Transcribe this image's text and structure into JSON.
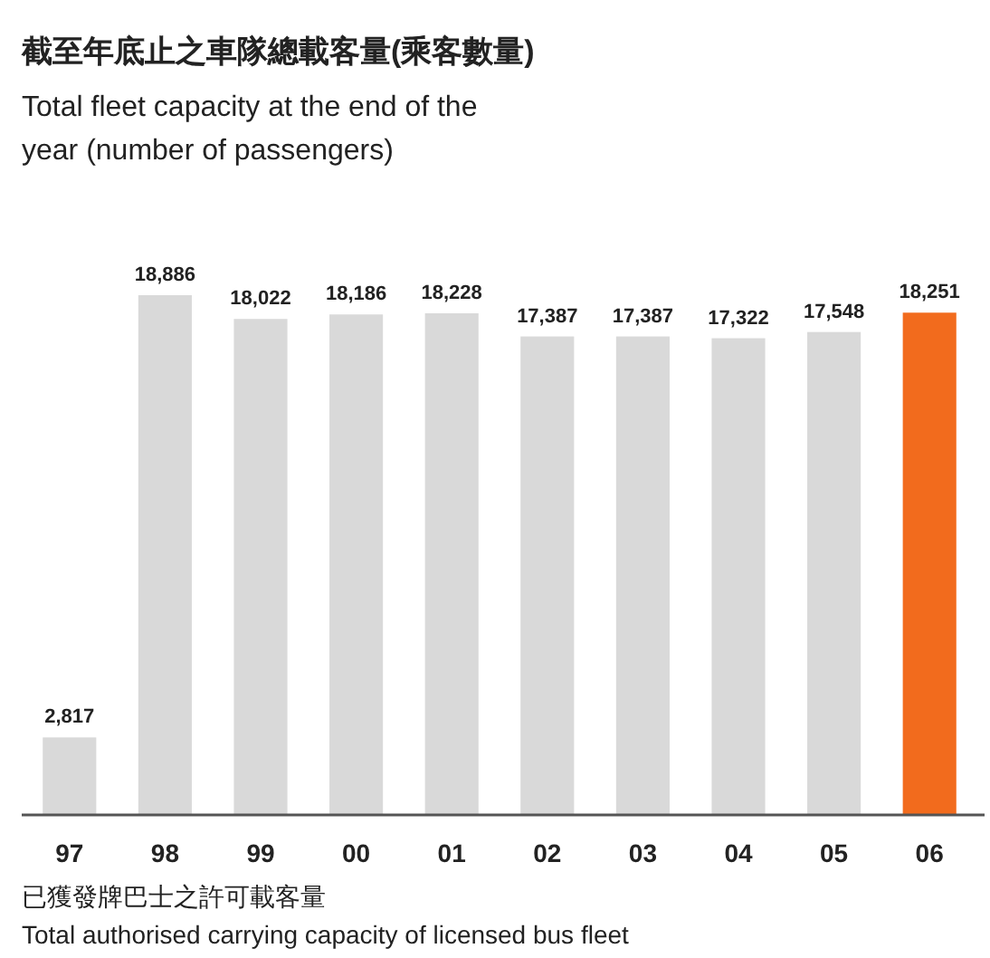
{
  "chart_data": {
    "type": "bar",
    "title": "截至年底止之車隊總載客量(乘客數量)",
    "subtitle": "Total fleet capacity at the end of the year (number of passengers)",
    "categories": [
      "97",
      "98",
      "99",
      "00",
      "01",
      "02",
      "03",
      "04",
      "05",
      "06"
    ],
    "values": [
      2817,
      18886,
      18022,
      18186,
      18228,
      17387,
      17387,
      17322,
      17548,
      18251
    ],
    "colors": [
      "#d9d9d9",
      "#d9d9d9",
      "#d9d9d9",
      "#d9d9d9",
      "#d9d9d9",
      "#d9d9d9",
      "#d9d9d9",
      "#d9d9d9",
      "#d9d9d9",
      "#f26b1d"
    ],
    "value_labels": [
      "2,817",
      "18,886",
      "18,022",
      "18,186",
      "18,228",
      "17,387",
      "17,387",
      "17,322",
      "17,548",
      "18,251"
    ],
    "annotations": [
      "已獲發牌巴士之許可載客量",
      "Total authorised carrying capacity of licensed bus fleet"
    ]
  }
}
